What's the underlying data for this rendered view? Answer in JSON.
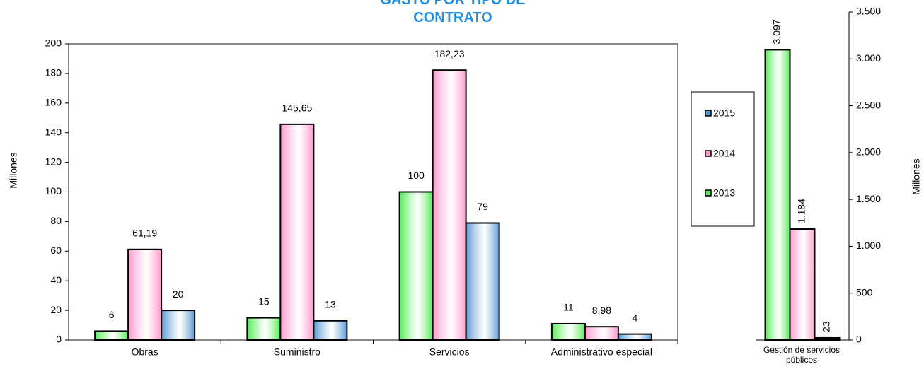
{
  "chart_data": [
    {
      "type": "bar",
      "title": "GASTO POR TIPO DE CONTRATO",
      "ylabel": "Millones",
      "categories": [
        "Obras",
        "Suministro",
        "Servicios",
        "Administrativo especial"
      ],
      "series": [
        {
          "name": "2013",
          "color": "#55ee55",
          "values": [
            6,
            15,
            100,
            11
          ]
        },
        {
          "name": "2014",
          "color": "#ff99cc",
          "values": [
            61.19,
            145.65,
            182.23,
            8.98
          ],
          "value_labels": [
            "61,19",
            "145,65",
            "182,23",
            "8,98"
          ]
        },
        {
          "name": "2015",
          "color": "#5b9bd5",
          "values": [
            20,
            13,
            79,
            4
          ]
        }
      ],
      "ylim": [
        0,
        200
      ],
      "yticks": [
        0,
        20,
        40,
        60,
        80,
        100,
        120,
        140,
        160,
        180,
        200
      ],
      "legend": "right"
    },
    {
      "type": "bar",
      "y2label": "Millones",
      "categories": [
        "Gestión de servicios públicos"
      ],
      "series": [
        {
          "color": "#55ee55",
          "values": [
            3097
          ],
          "value_labels": [
            "3.097"
          ],
          "axis": "y2"
        },
        {
          "color": "#ff99cc",
          "values": [
            1184
          ],
          "value_labels": [
            "1.184"
          ],
          "axis": "y2"
        },
        {
          "color": "#5b9bd5",
          "values": [
            23
          ],
          "axis": "y2"
        }
      ],
      "y2lim": [
        0,
        3500
      ],
      "y2ticks": [
        0,
        500,
        {
          "value": 1000,
          "label": "1.000"
        },
        {
          "value": 1500,
          "label": "1.500"
        },
        {
          "value": 2000,
          "label": "2.000"
        },
        {
          "value": 2500,
          "label": "2.500"
        },
        {
          "value": 3000,
          "label": "3.000"
        },
        {
          "value": 3500,
          "label": "3.500"
        }
      ]
    }
  ]
}
